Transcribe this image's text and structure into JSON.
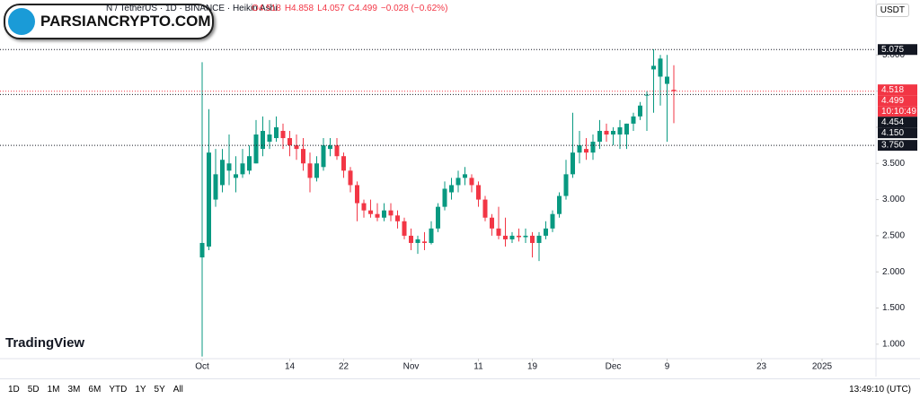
{
  "header": {
    "symbol": "N / TetherUS · 1D · BINANCE · Heikin Ashi",
    "ohlc": [
      "O4.518",
      "H4.858",
      "L4.057",
      "C4.499",
      "−0.028 (−0.62%)"
    ],
    "currency": "USDT",
    "watermark": "PARSIANCRYPTO.COM",
    "logo": "TradingView"
  },
  "toolbar": {
    "ranges": [
      "1D",
      "5D",
      "1M",
      "3M",
      "6M",
      "YTD",
      "1Y",
      "5Y",
      "All"
    ],
    "clock": "13:49:10 (UTC)"
  },
  "chart_data": {
    "type": "candlestick",
    "up_color": "#089981",
    "down_color": "#f23645",
    "x": [
      0,
      1,
      2,
      3,
      4,
      5,
      6,
      7,
      8,
      9,
      10,
      11,
      12,
      13,
      14,
      15,
      16,
      17,
      18,
      19,
      20,
      21,
      22,
      23,
      24,
      25,
      26,
      27,
      28,
      29,
      30,
      31,
      32,
      33,
      34,
      35,
      36,
      37,
      38,
      39,
      40,
      41,
      42,
      43,
      44,
      45,
      46,
      47,
      48,
      49,
      50,
      51,
      52,
      53,
      54,
      55,
      56,
      57,
      58,
      59,
      60,
      61,
      62,
      63,
      64,
      65,
      66,
      67,
      68,
      69,
      70
    ],
    "open": [
      2.2,
      2.35,
      3.0,
      3.2,
      3.4,
      3.3,
      3.35,
      3.4,
      3.5,
      3.7,
      3.8,
      3.85,
      3.95,
      3.85,
      3.75,
      3.7,
      3.5,
      3.3,
      3.45,
      3.7,
      3.75,
      3.6,
      3.4,
      3.2,
      2.95,
      2.85,
      2.8,
      2.75,
      2.85,
      2.78,
      2.7,
      2.5,
      2.4,
      2.42,
      2.4,
      2.6,
      2.9,
      3.1,
      3.2,
      3.3,
      3.3,
      3.2,
      3.0,
      2.75,
      2.6,
      2.5,
      2.45,
      2.5,
      2.48,
      2.5,
      2.4,
      2.5,
      2.6,
      2.8,
      3.05,
      3.35,
      3.65,
      3.7,
      3.65,
      3.8,
      3.95,
      3.9,
      3.9,
      3.9,
      4.05,
      4.15,
      4.45,
      4.8,
      4.7,
      4.6,
      4.518
    ],
    "high": [
      4.9,
      4.25,
      3.7,
      3.7,
      3.9,
      3.6,
      3.7,
      3.75,
      4.1,
      4.15,
      4.1,
      4.15,
      4.05,
      3.95,
      3.9,
      3.85,
      3.65,
      3.6,
      3.85,
      3.85,
      3.85,
      3.65,
      3.45,
      3.25,
      3.0,
      3.0,
      2.95,
      2.95,
      2.95,
      2.85,
      2.75,
      2.6,
      2.5,
      2.55,
      2.7,
      2.95,
      3.25,
      3.3,
      3.4,
      3.45,
      3.35,
      3.25,
      3.05,
      2.8,
      2.9,
      2.75,
      2.55,
      2.6,
      2.6,
      2.55,
      2.55,
      2.7,
      2.85,
      3.1,
      3.55,
      4.2,
      3.95,
      3.85,
      3.9,
      4.1,
      4.05,
      4.0,
      4.1,
      4.05,
      4.2,
      4.35,
      4.5,
      5.08,
      5.0,
      5.0,
      4.858
    ],
    "low": [
      0.83,
      2.3,
      2.9,
      3.1,
      3.2,
      3.1,
      3.3,
      3.35,
      3.5,
      3.6,
      3.7,
      3.8,
      3.7,
      3.6,
      3.55,
      3.4,
      3.1,
      3.25,
      3.4,
      3.6,
      3.55,
      3.3,
      3.1,
      2.7,
      2.75,
      2.75,
      2.7,
      2.7,
      2.7,
      2.6,
      2.45,
      2.3,
      2.25,
      2.3,
      2.38,
      2.55,
      2.85,
      3.0,
      3.1,
      3.2,
      3.1,
      2.9,
      2.7,
      2.5,
      2.45,
      2.35,
      2.4,
      2.42,
      2.4,
      2.2,
      2.15,
      2.45,
      2.55,
      2.75,
      3.0,
      3.3,
      3.5,
      3.55,
      3.55,
      3.7,
      3.8,
      3.75,
      3.7,
      3.7,
      3.95,
      4.1,
      3.95,
      4.2,
      4.3,
      3.8,
      4.057
    ],
    "close": [
      2.4,
      3.65,
      3.35,
      3.55,
      3.5,
      3.35,
      3.5,
      3.6,
      3.9,
      3.95,
      3.9,
      4.0,
      3.85,
      3.75,
      3.7,
      3.5,
      3.3,
      3.5,
      3.75,
      3.75,
      3.6,
      3.4,
      3.2,
      2.95,
      2.85,
      2.8,
      2.75,
      2.85,
      2.78,
      2.7,
      2.5,
      2.4,
      2.45,
      2.4,
      2.6,
      2.9,
      3.15,
      3.2,
      3.3,
      3.35,
      3.2,
      3.0,
      2.75,
      2.6,
      2.5,
      2.45,
      2.5,
      2.48,
      2.5,
      2.4,
      2.5,
      2.6,
      2.8,
      3.05,
      3.35,
      3.65,
      3.75,
      3.65,
      3.8,
      3.95,
      3.9,
      3.95,
      4.0,
      4.05,
      4.15,
      4.3,
      4.45,
      4.85,
      4.95,
      4.7,
      4.499
    ],
    "xlim": [
      -30,
      100
    ],
    "ylim": [
      0.8,
      5.76
    ],
    "xticks": [
      {
        "value": 0,
        "label": "Oct"
      },
      {
        "value": 13,
        "label": "14"
      },
      {
        "value": 21,
        "label": "22"
      },
      {
        "value": 31,
        "label": "Nov"
      },
      {
        "value": 41,
        "label": "11"
      },
      {
        "value": 49,
        "label": "19"
      },
      {
        "value": 61,
        "label": "Dec"
      },
      {
        "value": 69,
        "label": "9"
      },
      {
        "value": 83,
        "label": "23"
      },
      {
        "value": 92,
        "label": "2025"
      }
    ],
    "yticks": [
      {
        "value": 1,
        "label": "1.000"
      },
      {
        "value": 1.5,
        "label": "1.500"
      },
      {
        "value": 2,
        "label": "2.000"
      },
      {
        "value": 2.5,
        "label": "2.500"
      },
      {
        "value": 3,
        "label": "3.000"
      },
      {
        "value": 3.5,
        "label": "3.500"
      },
      {
        "value": 4,
        "label": "4.000"
      },
      {
        "value": 4.5,
        "label": "4.500"
      },
      {
        "value": 5,
        "label": "5.000"
      }
    ],
    "price_lines": [
      {
        "value": 5.075,
        "label": "5.075",
        "color": "#131722"
      },
      {
        "value": 4.499,
        "label": "4.499",
        "color": "#f23645"
      },
      {
        "value": 4.454,
        "label": "4.454",
        "color": "#131722"
      },
      {
        "value": 3.75,
        "label": "3.750",
        "color": "#131722"
      }
    ],
    "price_badges": [
      {
        "value": 4.518,
        "label": "4.518",
        "color": "#f23645"
      },
      {
        "value": 4.15,
        "label": "4.150",
        "color": "#131722"
      }
    ],
    "countdown": "10:10:49"
  }
}
